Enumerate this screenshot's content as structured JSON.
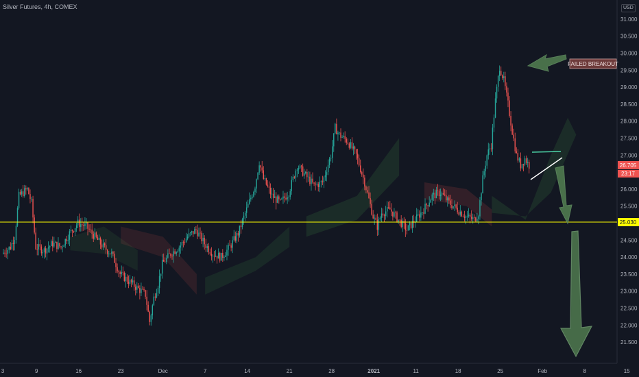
{
  "header": {
    "title": "Silver Futures, 4h, COMEX",
    "currency": "USD"
  },
  "colors": {
    "background": "#131722",
    "up": "#26a69a",
    "down": "#ef5350",
    "support_line": "#ffff00",
    "annotation_green": "#4f7a4f",
    "triangle_line": "#4cd4a8",
    "failed_label_bg": "#6d3a3a"
  },
  "chart_data": {
    "type": "candlestick",
    "instrument": "Silver Futures",
    "timeframe": "4h",
    "exchange": "COMEX",
    "ylim": [
      21.2,
      31.2
    ],
    "y_ticks": [
      "31.000",
      "30.500",
      "30.000",
      "29.500",
      "29.000",
      "28.500",
      "28.000",
      "27.500",
      "27.000",
      "26.500",
      "26.000",
      "25.500",
      "25.000",
      "24.500",
      "24.000",
      "23.500",
      "23.000",
      "22.500",
      "22.000",
      "21.500"
    ],
    "y_tick_values": [
      31.0,
      30.5,
      30.0,
      29.5,
      29.0,
      28.5,
      28.0,
      27.5,
      27.0,
      26.5,
      26.0,
      25.5,
      25.0,
      24.5,
      24.0,
      23.5,
      23.0,
      22.5,
      22.0,
      21.5
    ],
    "x_ticks": [
      "3",
      "9",
      "16",
      "23",
      "Dec",
      "7",
      "14",
      "21",
      "28",
      "2021",
      "11",
      "18",
      "25",
      "Feb",
      "8",
      "15"
    ],
    "x_tick_positions": [
      0,
      4,
      9,
      14,
      19,
      24,
      29,
      34,
      39,
      44,
      49,
      54,
      59,
      64,
      69,
      74
    ],
    "last_price": "26.705",
    "countdown": "23:17",
    "support_level": 25.03,
    "support_label": "25.030",
    "annotation": "FAILED BREAKOUT",
    "close_path": [
      [
        0,
        24.1
      ],
      [
        1,
        24.3
      ],
      [
        1.5,
        24.6
      ],
      [
        2,
        25.8
      ],
      [
        3,
        26.0
      ],
      [
        3.5,
        25.6
      ],
      [
        4,
        24.3
      ],
      [
        5,
        24.2
      ],
      [
        6,
        24.4
      ],
      [
        7,
        24.3
      ],
      [
        8,
        24.7
      ],
      [
        9,
        25.0
      ],
      [
        10,
        24.9
      ],
      [
        11,
        24.6
      ],
      [
        12,
        24.3
      ],
      [
        13,
        24.1
      ],
      [
        14,
        23.5
      ],
      [
        15,
        23.3
      ],
      [
        16,
        23.1
      ],
      [
        17,
        22.9
      ],
      [
        17.5,
        22.1
      ],
      [
        18,
        22.8
      ],
      [
        18.5,
        23.2
      ],
      [
        19,
        23.8
      ],
      [
        20,
        24.1
      ],
      [
        21,
        24.3
      ],
      [
        22,
        24.6
      ],
      [
        23,
        24.8
      ],
      [
        24,
        24.4
      ],
      [
        25,
        24.1
      ],
      [
        26,
        24.0
      ],
      [
        27,
        24.3
      ],
      [
        28,
        24.7
      ],
      [
        29,
        25.4
      ],
      [
        30,
        26.1
      ],
      [
        30.5,
        26.8
      ],
      [
        31,
        26.3
      ],
      [
        32,
        25.8
      ],
      [
        33,
        25.6
      ],
      [
        34,
        25.9
      ],
      [
        35,
        26.7
      ],
      [
        36,
        26.4
      ],
      [
        37,
        26.1
      ],
      [
        38,
        26.2
      ],
      [
        39,
        27.0
      ],
      [
        39.5,
        27.8
      ],
      [
        40,
        27.6
      ],
      [
        41,
        27.4
      ],
      [
        42,
        27.0
      ],
      [
        43,
        26.2
      ],
      [
        44,
        25.2
      ],
      [
        44.5,
        24.9
      ],
      [
        45,
        25.3
      ],
      [
        46,
        25.4
      ],
      [
        47,
        25.1
      ],
      [
        48,
        24.8
      ],
      [
        49,
        25.1
      ],
      [
        50,
        25.4
      ],
      [
        51,
        25.8
      ],
      [
        52,
        25.9
      ],
      [
        53,
        25.6
      ],
      [
        54,
        25.4
      ],
      [
        55,
        25.2
      ],
      [
        56,
        25.1
      ],
      [
        56.5,
        25.3
      ],
      [
        57,
        26.3
      ],
      [
        57.5,
        27.0
      ],
      [
        58,
        27.3
      ],
      [
        58.5,
        28.6
      ],
      [
        59,
        29.6
      ],
      [
        59.5,
        29.2
      ],
      [
        60,
        28.5
      ],
      [
        60.5,
        27.7
      ],
      [
        61,
        27.0
      ],
      [
        61.5,
        26.7
      ],
      [
        62,
        26.9
      ],
      [
        62.5,
        26.7
      ]
    ]
  }
}
